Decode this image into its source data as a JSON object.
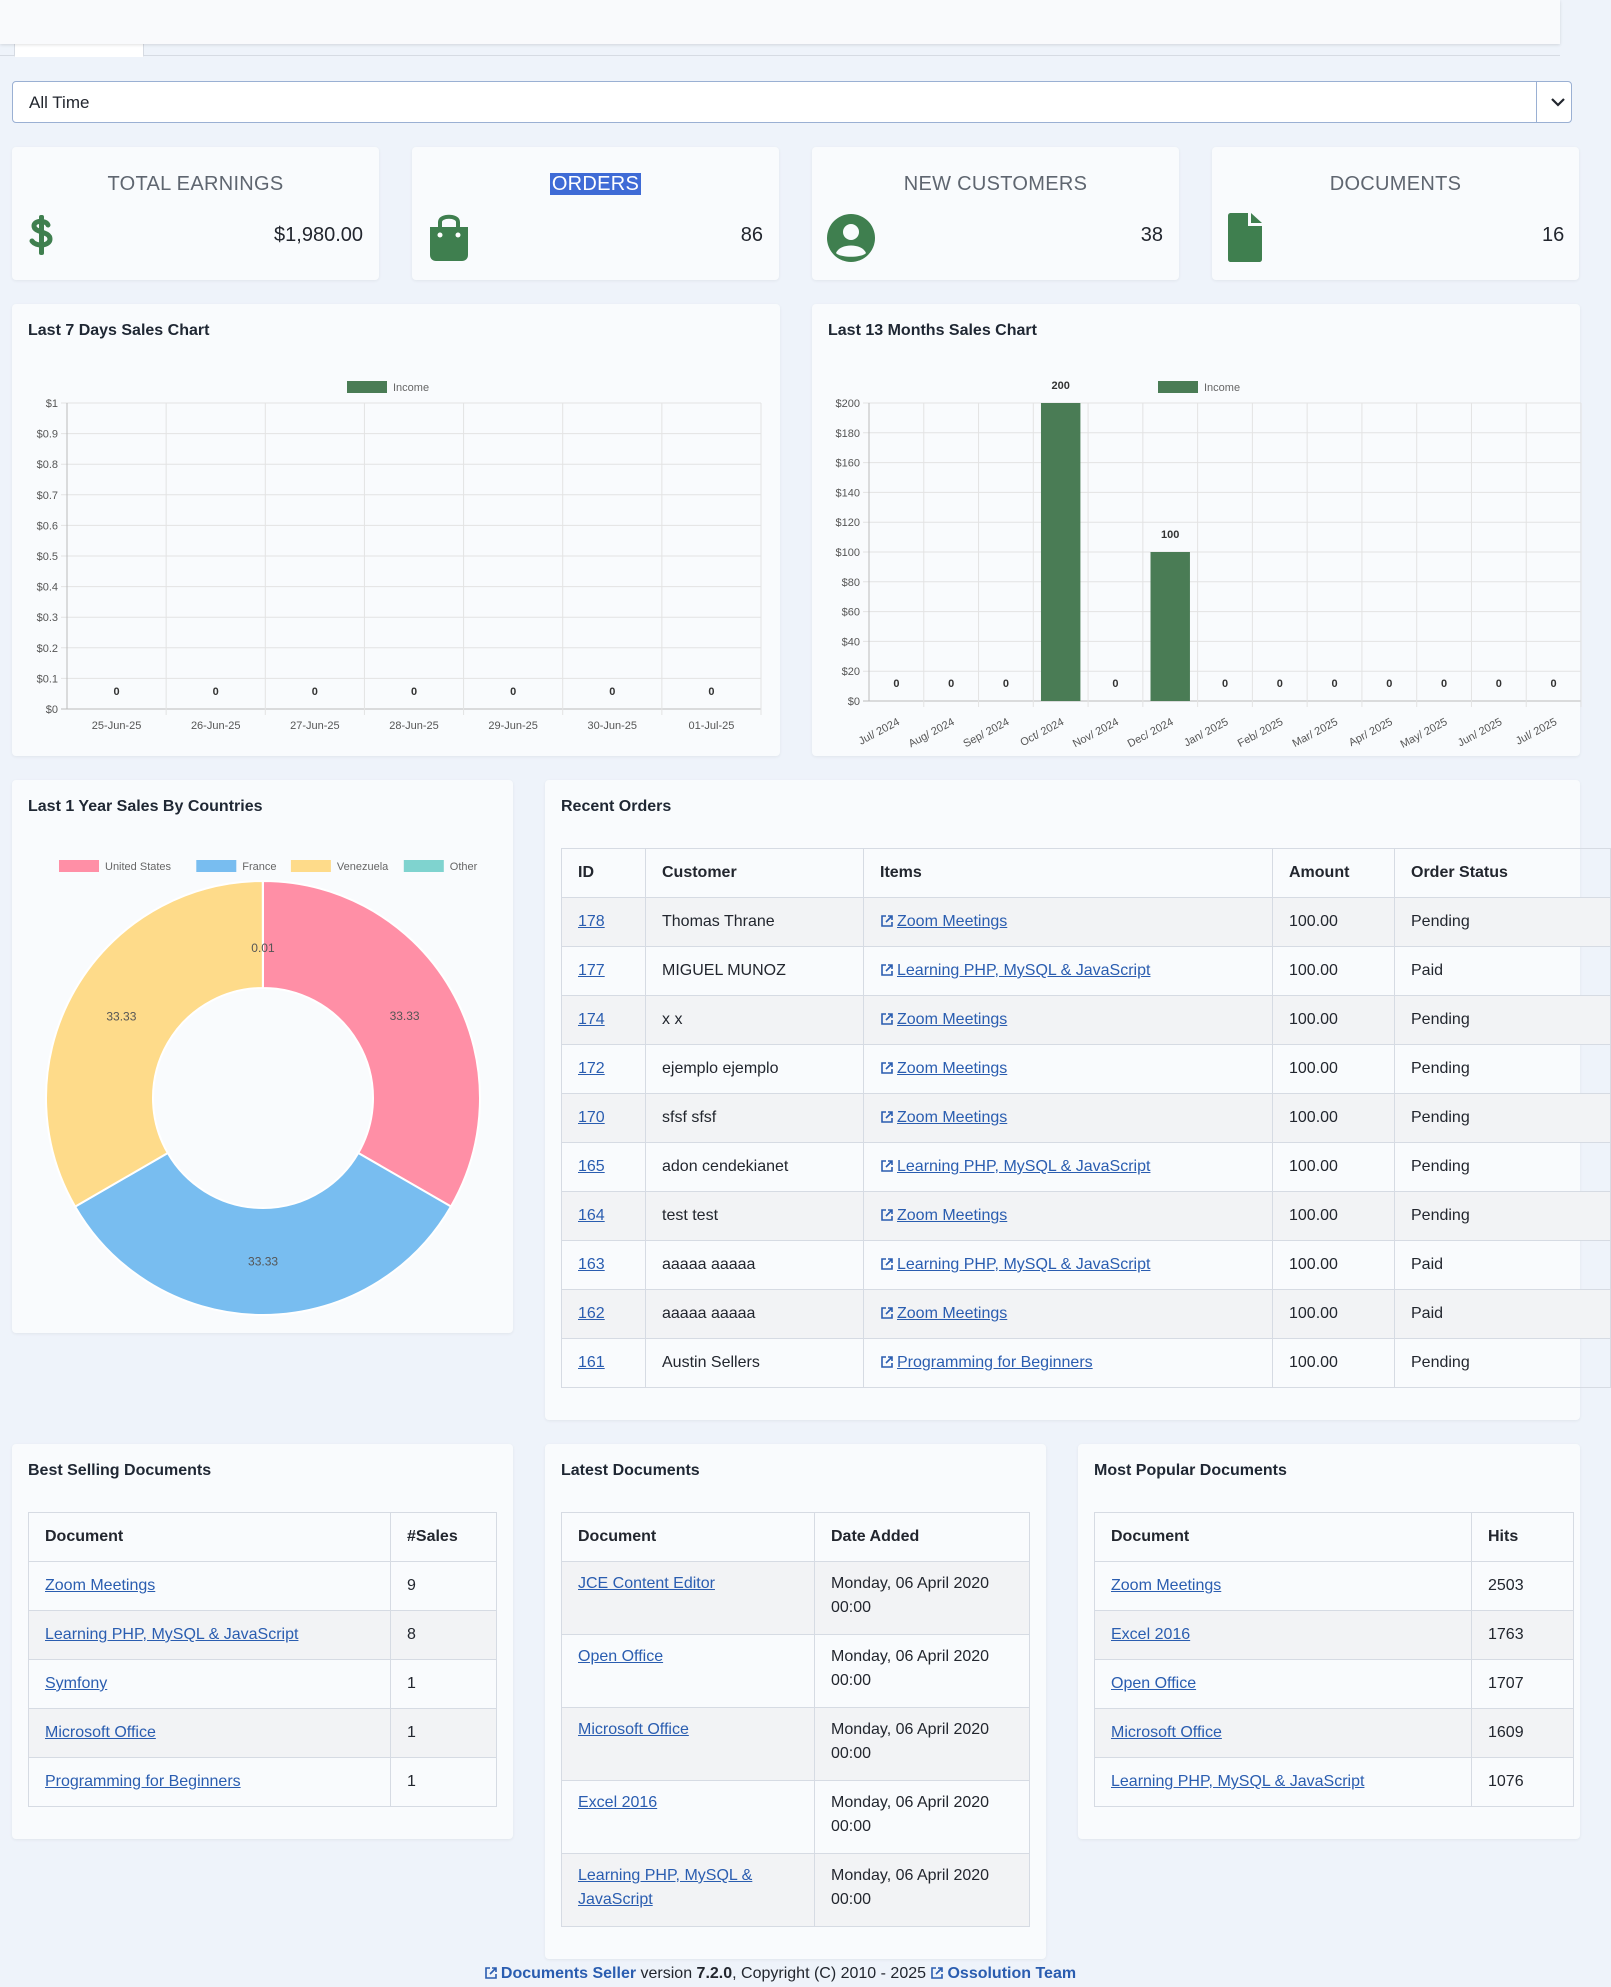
{
  "filter": {
    "selected": "All Time"
  },
  "stats": [
    {
      "title": "TOTAL EARNINGS",
      "value": "$1,980.00",
      "icon": "dollar-icon"
    },
    {
      "title": "ORDERS",
      "value": "86",
      "icon": "shopping-bag-icon"
    },
    {
      "title": "NEW CUSTOMERS",
      "value": "38",
      "icon": "user-circle-icon"
    },
    {
      "title": "DOCUMENTS",
      "value": "16",
      "icon": "file-icon"
    }
  ],
  "chart7": {
    "title": "Last 7 Days Sales Chart",
    "chart_data": {
      "type": "bar",
      "categories": [
        "25-Jun-25",
        "26-Jun-25",
        "27-Jun-25",
        "28-Jun-25",
        "29-Jun-25",
        "30-Jun-25",
        "01-Jul-25"
      ],
      "series": [
        {
          "name": "Income",
          "values": [
            0,
            0,
            0,
            0,
            0,
            0,
            0
          ]
        }
      ],
      "y_ticks": [
        "$0",
        "$0.1",
        "$0.2",
        "$0.3",
        "$0.4",
        "$0.5",
        "$0.6",
        "$0.7",
        "$0.8",
        "$0.9",
        "$1"
      ],
      "ylim": [
        0,
        1
      ],
      "legend": "top-center",
      "grid": true,
      "color": "#4a7c55"
    }
  },
  "chart13": {
    "title": "Last 13 Months Sales Chart",
    "chart_data": {
      "type": "bar",
      "categories": [
        "Jul/ 2024",
        "Aug/ 2024",
        "Sep/ 2024",
        "Oct/ 2024",
        "Nov/ 2024",
        "Dec/ 2024",
        "Jan/ 2025",
        "Feb/ 2025",
        "Mar/ 2025",
        "Apr/ 2025",
        "May/ 2025",
        "Jun/ 2025",
        "Jul/ 2025"
      ],
      "series": [
        {
          "name": "Income",
          "values": [
            0,
            0,
            0,
            200,
            0,
            100,
            0,
            0,
            0,
            0,
            0,
            0,
            0
          ]
        }
      ],
      "y_ticks": [
        "$0",
        "$20",
        "$40",
        "$60",
        "$80",
        "$100",
        "$120",
        "$140",
        "$160",
        "$180",
        "$200"
      ],
      "ylim": [
        0,
        200
      ],
      "legend": "top-center",
      "grid": true,
      "color": "#4a7c55"
    }
  },
  "countries": {
    "title": "Last 1 Year Sales By Countries",
    "chart_data": {
      "type": "pie",
      "labels": [
        "United States",
        "France",
        "Venezuela",
        "Other"
      ],
      "values": [
        33.33,
        33.33,
        33.33,
        0.01
      ],
      "colors": [
        "#ff8fa6",
        "#78bdf0",
        "#fedb8a",
        "#7fd3cf"
      ],
      "legend": "top"
    }
  },
  "recent_orders": {
    "title": "Recent Orders",
    "headers": [
      "ID",
      "Customer",
      "Items",
      "Amount",
      "Order Status"
    ],
    "rows": [
      [
        "178",
        "Thomas Thrane",
        "Zoom Meetings",
        "100.00",
        "Pending"
      ],
      [
        "177",
        "MIGUEL MUNOZ",
        "Learning PHP, MySQL & JavaScript",
        "100.00",
        "Paid"
      ],
      [
        "174",
        "x x",
        "Zoom Meetings",
        "100.00",
        "Pending"
      ],
      [
        "172",
        "ejemplo ejemplo",
        "Zoom Meetings",
        "100.00",
        "Pending"
      ],
      [
        "170",
        "sfsf sfsf",
        "Zoom Meetings",
        "100.00",
        "Pending"
      ],
      [
        "165",
        "adon cendekianet",
        "Learning PHP, MySQL & JavaScript",
        "100.00",
        "Pending"
      ],
      [
        "164",
        "test test",
        "Zoom Meetings",
        "100.00",
        "Pending"
      ],
      [
        "163",
        "aaaaa aaaaa",
        "Learning PHP, MySQL & JavaScript",
        "100.00",
        "Paid"
      ],
      [
        "162",
        "aaaaa aaaaa",
        "Zoom Meetings",
        "100.00",
        "Paid"
      ],
      [
        "161",
        "Austin Sellers",
        "Programming for Beginners",
        "100.00",
        "Pending"
      ]
    ]
  },
  "best_selling": {
    "title": "Best Selling Documents",
    "headers": [
      "Document",
      "#Sales"
    ],
    "rows": [
      [
        "Zoom Meetings",
        "9"
      ],
      [
        "Learning PHP, MySQL & JavaScript",
        "8"
      ],
      [
        "Symfony",
        "1"
      ],
      [
        "Microsoft Office",
        "1"
      ],
      [
        "Programming for Beginners",
        "1"
      ]
    ]
  },
  "latest_docs": {
    "title": "Latest Documents",
    "headers": [
      "Document",
      "Date Added"
    ],
    "rows": [
      [
        "JCE Content Editor",
        "Monday, 06 April 2020 00:00"
      ],
      [
        "Open Office",
        "Monday, 06 April 2020 00:00"
      ],
      [
        "Microsoft Office",
        "Monday, 06 April 2020 00:00"
      ],
      [
        "Excel 2016",
        "Monday, 06 April 2020 00:00"
      ],
      [
        "Learning PHP, MySQL & JavaScript",
        "Monday, 06 April 2020 00:00"
      ]
    ]
  },
  "popular_docs": {
    "title": "Most Popular Documents",
    "headers": [
      "Document",
      "Hits"
    ],
    "rows": [
      [
        "Zoom Meetings",
        "2503"
      ],
      [
        "Excel 2016",
        "1763"
      ],
      [
        "Open Office",
        "1707"
      ],
      [
        "Microsoft Office",
        "1609"
      ],
      [
        "Learning PHP, MySQL & JavaScript",
        "1076"
      ]
    ]
  },
  "footer": {
    "product": "Documents Seller",
    "version_label": "version",
    "version": "7.2.0",
    "copyright": ", Copyright (C) 2010 - 2025",
    "team": "Ossolution Team"
  }
}
